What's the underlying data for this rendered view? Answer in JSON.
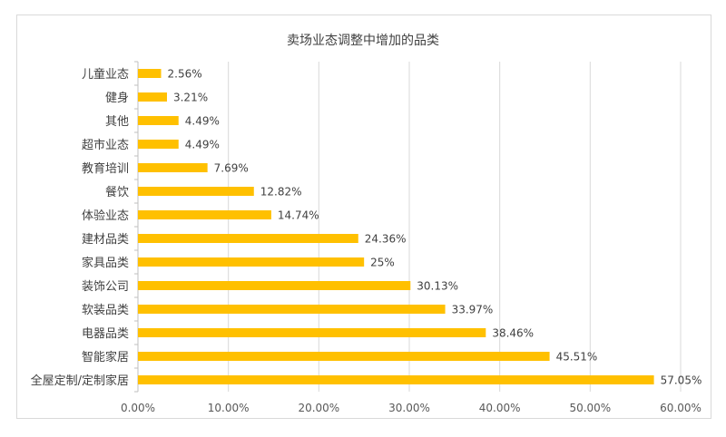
{
  "chart_data": {
    "type": "bar",
    "orientation": "horizontal",
    "title": "卖场业态调整中增加的品类",
    "xlabel": "",
    "ylabel": "",
    "categories": [
      "儿童业态",
      "健身",
      "其他",
      "超市业态",
      "教育培训",
      "餐饮",
      "体验业态",
      "建材品类",
      "家具品类",
      "装饰公司",
      "软装品类",
      "电器品类",
      "智能家居",
      "全屋定制/定制家居"
    ],
    "values": [
      2.56,
      3.21,
      4.49,
      4.49,
      7.69,
      12.82,
      14.74,
      24.36,
      25,
      30.13,
      33.97,
      38.46,
      45.51,
      57.05
    ],
    "data_labels": [
      "2.56%",
      "3.21%",
      "4.49%",
      "4.49%",
      "7.69%",
      "12.82%",
      "14.74%",
      "24.36%",
      "25%",
      "30.13%",
      "33.97%",
      "38.46%",
      "45.51%",
      "57.05%"
    ],
    "xlim": [
      0,
      60
    ],
    "x_ticks": [
      "0.00%",
      "10.00%",
      "20.00%",
      "30.00%",
      "40.00%",
      "50.00%",
      "60.00%"
    ],
    "grid": true,
    "legend": "none",
    "bar_color": "#FFC000",
    "grid_color": "#d9d9d9"
  }
}
